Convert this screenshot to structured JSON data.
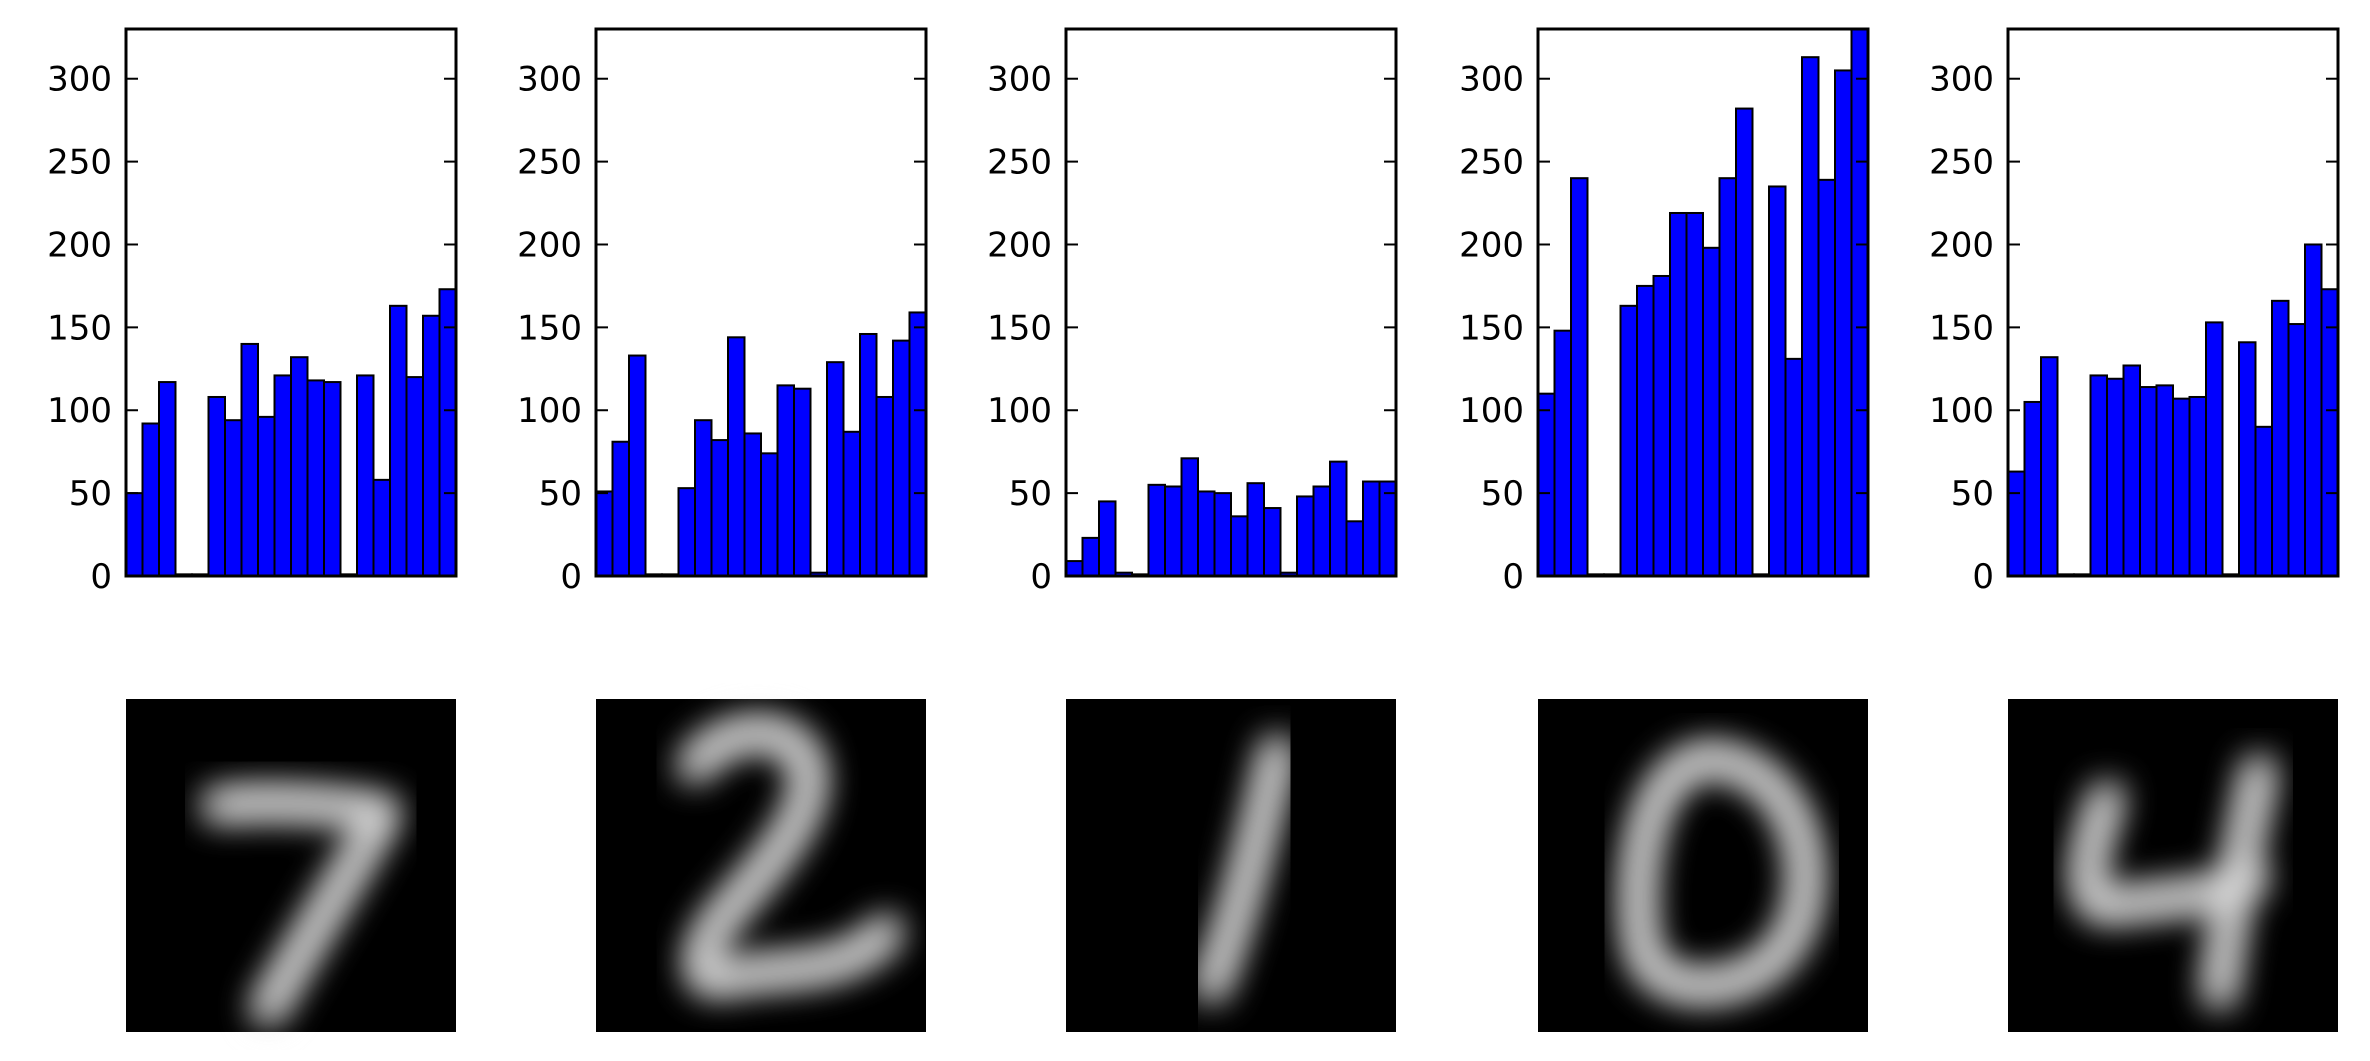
{
  "colors": {
    "bar": "#0000ff",
    "bar_edge": "#000000",
    "axis": "#000000",
    "image_bg": "#000000",
    "digit": "#e6e6e6"
  },
  "chart_data": [
    {
      "type": "bar",
      "ylim": [
        0,
        330
      ],
      "yticks": [
        "0",
        "50",
        "100",
        "150",
        "200",
        "250",
        "300"
      ],
      "values": [
        50,
        92,
        117,
        1,
        1,
        108,
        94,
        140,
        96,
        121,
        132,
        118,
        117,
        1,
        121,
        58,
        163,
        120,
        157,
        173
      ],
      "digit_image": "digit-7"
    },
    {
      "type": "bar",
      "ylim": [
        0,
        330
      ],
      "yticks": [
        "0",
        "50",
        "100",
        "150",
        "200",
        "250",
        "300"
      ],
      "values": [
        51,
        81,
        133,
        1,
        1,
        53,
        94,
        82,
        144,
        86,
        74,
        115,
        113,
        2,
        129,
        87,
        146,
        108,
        142,
        159
      ],
      "digit_image": "digit-2"
    },
    {
      "type": "bar",
      "ylim": [
        0,
        330
      ],
      "yticks": [
        "0",
        "50",
        "100",
        "150",
        "200",
        "250",
        "300"
      ],
      "values": [
        9,
        23,
        45,
        2,
        1,
        55,
        54,
        71,
        51,
        50,
        36,
        56,
        41,
        2,
        48,
        54,
        69,
        33,
        57,
        57
      ],
      "digit_image": "digit-1"
    },
    {
      "type": "bar",
      "ylim": [
        0,
        330
      ],
      "yticks": [
        "0",
        "50",
        "100",
        "150",
        "200",
        "250",
        "300"
      ],
      "values": [
        110,
        148,
        240,
        1,
        1,
        163,
        175,
        181,
        219,
        219,
        198,
        240,
        282,
        1,
        235,
        131,
        313,
        239,
        305,
        330
      ],
      "digit_image": "digit-0"
    },
    {
      "type": "bar",
      "ylim": [
        0,
        330
      ],
      "yticks": [
        "0",
        "50",
        "100",
        "150",
        "200",
        "250",
        "300"
      ],
      "values": [
        63,
        105,
        132,
        1,
        1,
        121,
        119,
        127,
        114,
        115,
        107,
        108,
        153,
        1,
        141,
        90,
        166,
        152,
        200,
        173
      ],
      "digit_image": "digit-4"
    }
  ]
}
